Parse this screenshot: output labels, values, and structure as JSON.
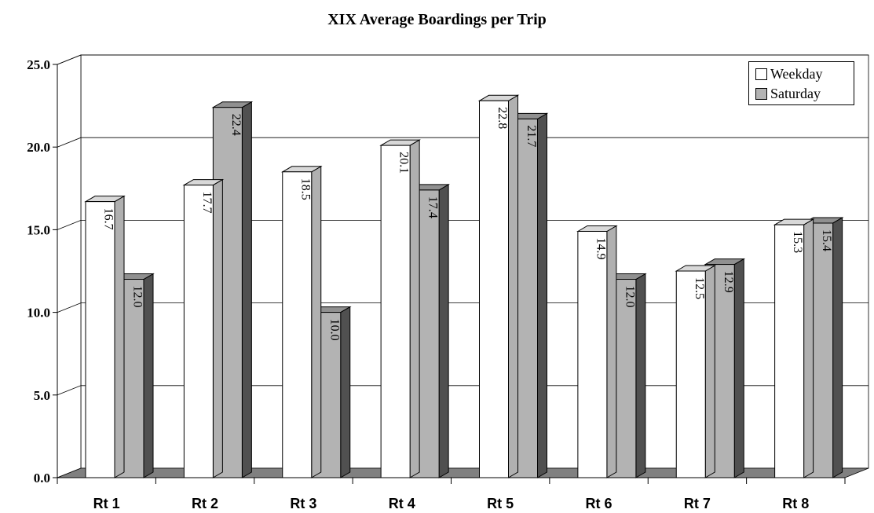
{
  "chart_data": {
    "type": "bar",
    "title": "XIX Average Boardings per Trip",
    "categories": [
      "Rt 1",
      "Rt 2",
      "Rt 3",
      "Rt 4",
      "Rt 5",
      "Rt 6",
      "Rt 7",
      "Rt 8"
    ],
    "series": [
      {
        "name": "Weekday",
        "values": [
          16.7,
          17.7,
          18.5,
          20.1,
          22.8,
          14.9,
          12.5,
          15.3
        ],
        "color": "#ffffff"
      },
      {
        "name": "Saturday",
        "values": [
          12.0,
          22.4,
          10.0,
          17.4,
          21.7,
          12.0,
          12.9,
          15.4
        ],
        "color": "#b3b3b3"
      }
    ],
    "y_ticks": [
      "0.0",
      "5.0",
      "10.0",
      "15.0",
      "20.0",
      "25.0"
    ],
    "ylim": [
      0,
      25
    ],
    "grid": true,
    "legend_position": "top-right",
    "style": "3d-columns"
  }
}
